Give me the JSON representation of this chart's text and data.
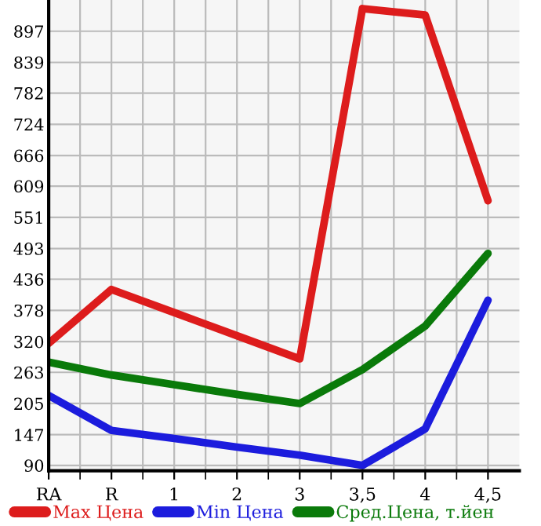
{
  "chart_data": {
    "type": "line",
    "categories": [
      "RA",
      "R",
      "1",
      "2",
      "3",
      "3,5",
      "4",
      "4,5"
    ],
    "series": [
      {
        "name": "Max Цена",
        "color": "#dd1c1c",
        "values": [
          317,
          417,
          374,
          331,
          288,
          939,
          927,
          582
        ]
      },
      {
        "name": "Min Цена",
        "color": "#1c1cdd",
        "values": [
          220,
          155,
          140,
          124,
          109,
          90,
          158,
          397
        ]
      },
      {
        "name": "Сред.Цена, т.йен",
        "color": "#0a7a0a",
        "values": [
          282,
          258,
          240,
          222,
          205,
          268,
          349,
          484
        ]
      }
    ],
    "ylim": [
      80,
      955
    ],
    "yticks": [
      90,
      147,
      205,
      263,
      320,
      378,
      436,
      493,
      551,
      609,
      666,
      724,
      782,
      839,
      897
    ],
    "grid": true,
    "legend": "bottom",
    "marker": "none",
    "line_style": "solid"
  }
}
